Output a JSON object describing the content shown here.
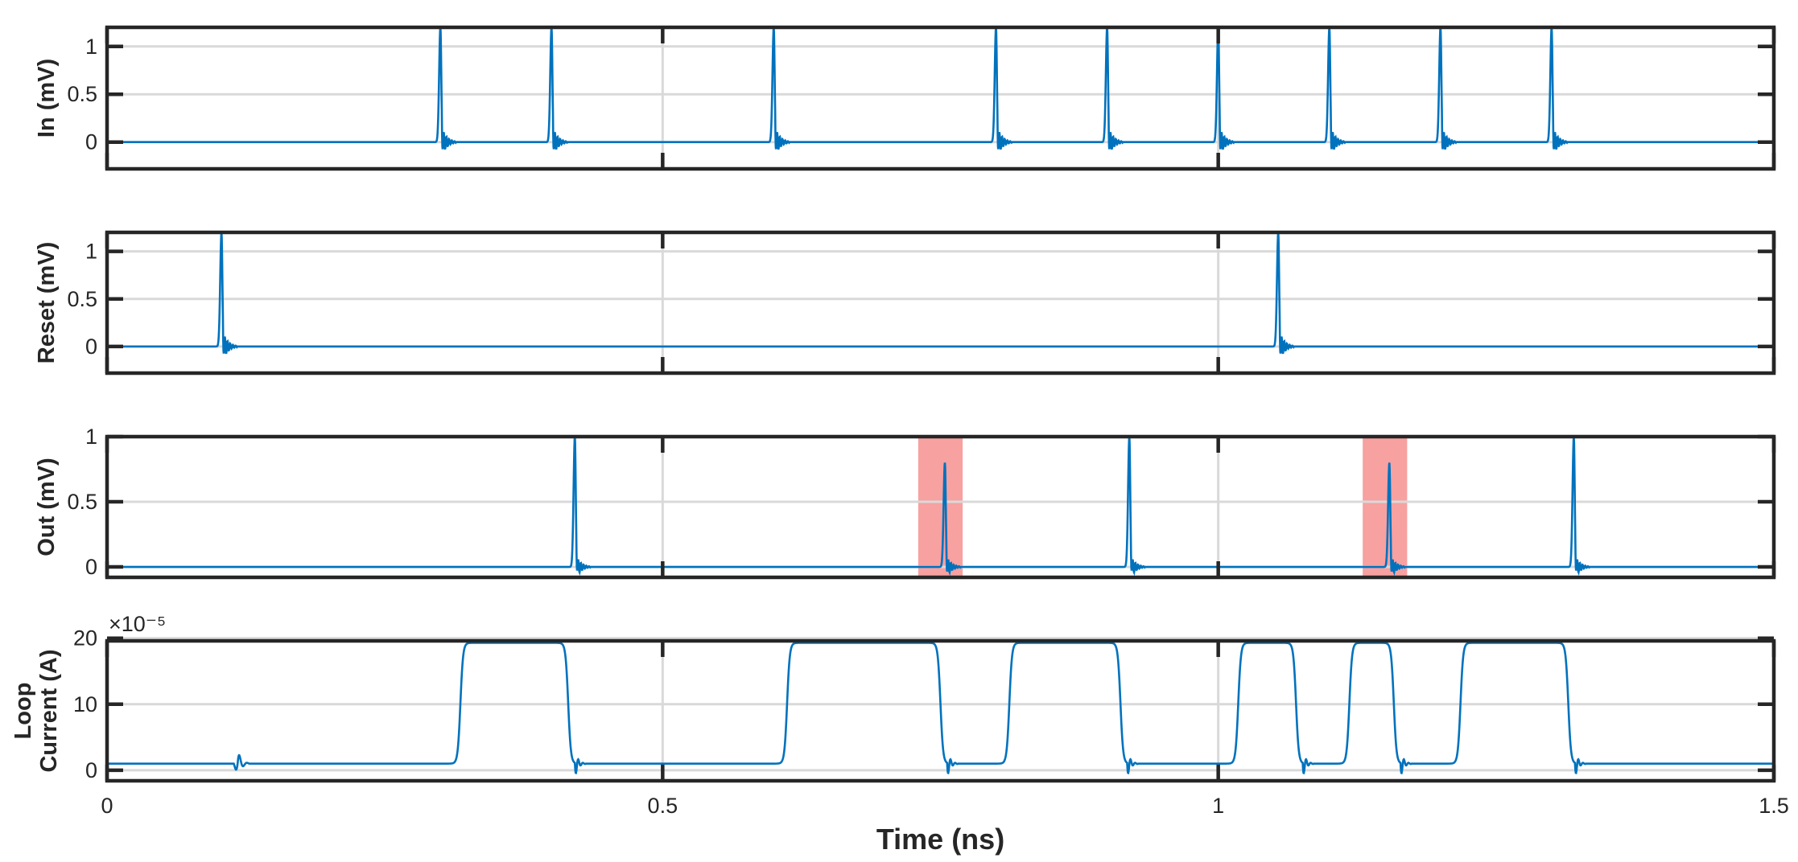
{
  "colors": {
    "trace": "#0072bd",
    "axes": "#262626",
    "grid": "#d9d9d9",
    "highlight": "#f7a1a1",
    "background": "#ffffff"
  },
  "chart_data": {
    "type": "line",
    "layout": "4 stacked subplots sharing x-axis",
    "xlabel": "Time (ns)",
    "xlim": [
      0,
      1.5
    ],
    "xticks": [
      0,
      0.5,
      1,
      1.5
    ],
    "xtick_labels": [
      "0",
      "0.5",
      "1",
      "1.5"
    ],
    "grid": true,
    "subplots": [
      {
        "ylabel": [
          "In (mV)"
        ],
        "ylim": [
          -0.28,
          1.2
        ],
        "yticks": [
          0,
          0.5,
          1
        ],
        "ytick_labels": [
          "0",
          "0.5",
          "1"
        ],
        "pulse_times_ns": [
          0.3,
          0.4,
          0.6,
          0.8,
          0.9,
          1.0,
          1.1,
          1.2,
          1.3
        ],
        "pulse_peak_mV": 1.2
      },
      {
        "ylabel": [
          "Reset (mV)"
        ],
        "ylim": [
          -0.28,
          1.2
        ],
        "yticks": [
          0,
          0.5,
          1
        ],
        "ytick_labels": [
          "0",
          "0.5",
          "1"
        ],
        "pulse_times_ns": [
          0.103,
          1.054
        ],
        "pulse_peak_mV": 1.2
      },
      {
        "ylabel": [
          "Out (mV)"
        ],
        "ylim": [
          -0.08,
          1.0
        ],
        "yticks": [
          0,
          0.5,
          1
        ],
        "ytick_labels": [
          "0",
          "0.5",
          "1"
        ],
        "pulse_times_ns": [
          0.421,
          0.754,
          0.92,
          1.154,
          1.32
        ],
        "pulse_peaks_mV": [
          1.0,
          0.8,
          1.0,
          0.8,
          1.0
        ],
        "highlight_regions_ns": [
          [
            0.73,
            0.77
          ],
          [
            1.13,
            1.17
          ]
        ]
      },
      {
        "ylabel": [
          "Loop",
          "Current (A)"
        ],
        "ylim": [
          -1.6,
          19.6
        ],
        "yticks": [
          0,
          10,
          20
        ],
        "ytick_labels": [
          "0",
          "10",
          "20"
        ],
        "exponent_label": "×10⁻⁵",
        "baseline_e5A": 1.0,
        "high_e5A": 19.3,
        "high_intervals_ns": [
          [
            0.318,
            0.415
          ],
          [
            0.612,
            0.75
          ],
          [
            0.812,
            0.912
          ],
          [
            1.018,
            1.07
          ],
          [
            1.118,
            1.158
          ],
          [
            1.218,
            1.315
          ]
        ]
      }
    ]
  }
}
